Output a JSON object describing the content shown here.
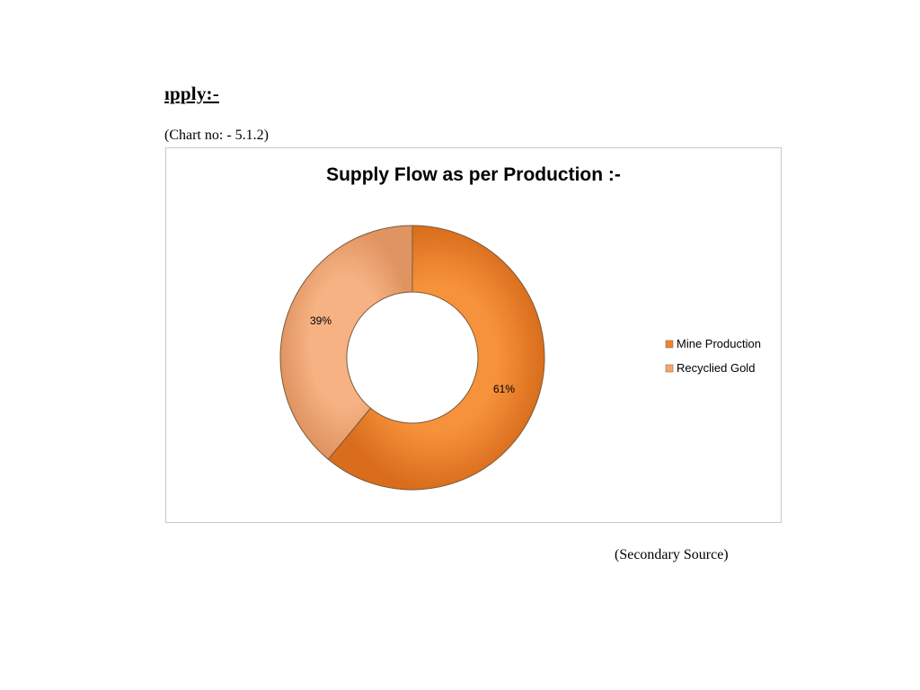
{
  "document": {
    "heading": "ıpply:-",
    "chart_no": "(Chart no: - 5.1.2)",
    "source": "(Secondary Source)"
  },
  "chart_data": {
    "type": "pie",
    "variant": "donut",
    "title": "Supply Flow as per Production :-",
    "categories": [
      "Mine Production",
      "Recyclied Gold"
    ],
    "values": [
      61,
      39
    ],
    "labels": [
      "61%",
      "39%"
    ],
    "colors": [
      "#f0852e",
      "#f2a670"
    ],
    "legend": "right"
  }
}
